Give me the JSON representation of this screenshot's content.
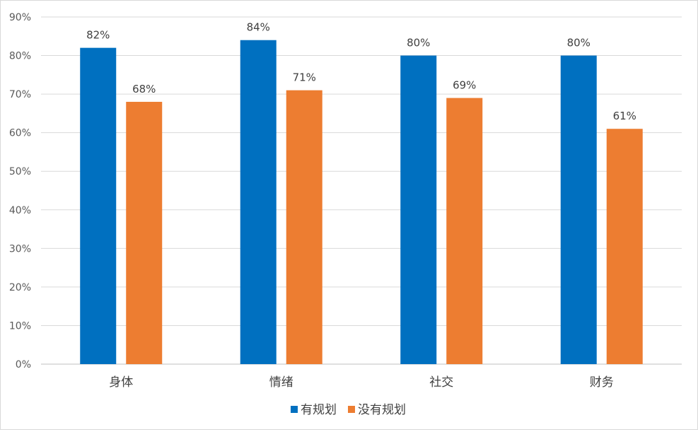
{
  "chart_data": {
    "type": "bar",
    "categories": [
      "身体",
      "情绪",
      "社交",
      "财务"
    ],
    "series": [
      {
        "name": "有规划",
        "values": [
          82,
          84,
          80,
          80
        ],
        "labels": [
          "82%",
          "84%",
          "80%",
          "80%"
        ],
        "color": "#0070C0"
      },
      {
        "name": "没有规划",
        "values": [
          68,
          71,
          69,
          61
        ],
        "labels": [
          "68%",
          "71%",
          "69%",
          "61%"
        ],
        "color": "#ED7D31"
      }
    ],
    "ylim": [
      0,
      90
    ],
    "yticks": [
      0,
      10,
      20,
      30,
      40,
      50,
      60,
      70,
      80,
      90
    ],
    "ytick_labels": [
      "0%",
      "10%",
      "20%",
      "30%",
      "40%",
      "50%",
      "60%",
      "70%",
      "80%",
      "90%"
    ],
    "grid": true,
    "gridline_color": "#d9d9d9",
    "legend_position": "bottom"
  }
}
